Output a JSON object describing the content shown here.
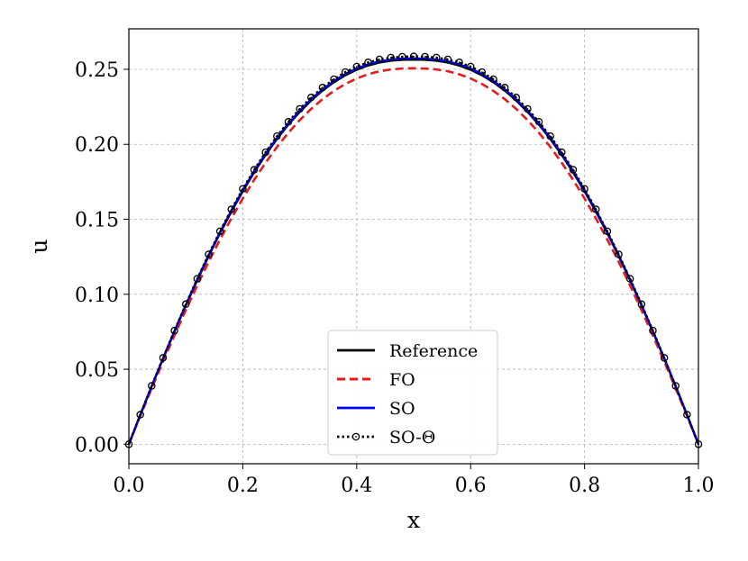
{
  "chart_data": {
    "type": "line",
    "title": "",
    "xlabel": "x",
    "ylabel": "u",
    "xlim": [
      0.0,
      1.0
    ],
    "ylim": [
      -0.013,
      0.277
    ],
    "xticks": [
      "0.0",
      "0.2",
      "0.4",
      "0.6",
      "0.8",
      "1.0"
    ],
    "yticks": [
      "0.00",
      "0.05",
      "0.10",
      "0.15",
      "0.20",
      "0.25"
    ],
    "grid": true,
    "legend_position": "lower-center",
    "series": [
      {
        "name": "Reference",
        "style": "solid",
        "color": "#000000",
        "marker": "none",
        "x": [
          0.0,
          0.02,
          0.04,
          0.06,
          0.08,
          0.1,
          0.12,
          0.14,
          0.16,
          0.18,
          0.2,
          0.22,
          0.24,
          0.26,
          0.28,
          0.3,
          0.32,
          0.34,
          0.36,
          0.38,
          0.4,
          0.42,
          0.44,
          0.46,
          0.48,
          0.5,
          0.52,
          0.54,
          0.56,
          0.58,
          0.6,
          0.62,
          0.64,
          0.66,
          0.68,
          0.7,
          0.72,
          0.74,
          0.76,
          0.78,
          0.8,
          0.82,
          0.84,
          0.86,
          0.88,
          0.9,
          0.92,
          0.94,
          0.96,
          0.98,
          1.0
        ],
        "y": [
          0.0,
          0.0195,
          0.0385,
          0.057,
          0.075,
          0.0925,
          0.1093,
          0.1254,
          0.1407,
          0.1551,
          0.1687,
          0.1813,
          0.1929,
          0.2035,
          0.2131,
          0.2216,
          0.2292,
          0.2358,
          0.2414,
          0.246,
          0.2497,
          0.2525,
          0.2545,
          0.2557,
          0.2563,
          0.2565,
          0.2563,
          0.2557,
          0.2545,
          0.2525,
          0.2497,
          0.246,
          0.2414,
          0.2358,
          0.2292,
          0.2216,
          0.2131,
          0.2035,
          0.1929,
          0.1813,
          0.1687,
          0.1551,
          0.1407,
          0.1254,
          0.1093,
          0.0925,
          0.075,
          0.057,
          0.0385,
          0.0195,
          0.0
        ]
      },
      {
        "name": "FO",
        "style": "dashed",
        "color": "#e41a1c",
        "marker": "none",
        "x": [
          0.0,
          0.02,
          0.04,
          0.06,
          0.08,
          0.1,
          0.12,
          0.14,
          0.16,
          0.18,
          0.2,
          0.22,
          0.24,
          0.26,
          0.28,
          0.3,
          0.32,
          0.34,
          0.36,
          0.38,
          0.4,
          0.42,
          0.44,
          0.46,
          0.48,
          0.5,
          0.52,
          0.54,
          0.56,
          0.58,
          0.6,
          0.62,
          0.64,
          0.66,
          0.68,
          0.7,
          0.72,
          0.74,
          0.76,
          0.78,
          0.8,
          0.82,
          0.84,
          0.86,
          0.88,
          0.9,
          0.92,
          0.94,
          0.96,
          0.98,
          1.0
        ],
        "y": [
          0.0,
          0.0188,
          0.0372,
          0.0551,
          0.0725,
          0.0895,
          0.1059,
          0.1216,
          0.1365,
          0.1506,
          0.1639,
          0.1763,
          0.1877,
          0.1982,
          0.2077,
          0.2161,
          0.2236,
          0.2301,
          0.2356,
          0.2402,
          0.2439,
          0.2467,
          0.2487,
          0.2499,
          0.2505,
          0.2507,
          0.2505,
          0.2499,
          0.2487,
          0.2467,
          0.2439,
          0.2402,
          0.2356,
          0.2301,
          0.2236,
          0.2161,
          0.2077,
          0.1982,
          0.1877,
          0.1763,
          0.1639,
          0.1506,
          0.1365,
          0.1216,
          0.1059,
          0.0895,
          0.0725,
          0.0551,
          0.0372,
          0.0188,
          0.0
        ]
      },
      {
        "name": "SO",
        "style": "solid",
        "color": "#0000ee",
        "marker": "none",
        "x": [
          0.0,
          0.02,
          0.04,
          0.06,
          0.08,
          0.1,
          0.12,
          0.14,
          0.16,
          0.18,
          0.2,
          0.22,
          0.24,
          0.26,
          0.28,
          0.3,
          0.32,
          0.34,
          0.36,
          0.38,
          0.4,
          0.42,
          0.44,
          0.46,
          0.48,
          0.5,
          0.52,
          0.54,
          0.56,
          0.58,
          0.6,
          0.62,
          0.64,
          0.66,
          0.68,
          0.7,
          0.72,
          0.74,
          0.76,
          0.78,
          0.8,
          0.82,
          0.84,
          0.86,
          0.88,
          0.9,
          0.92,
          0.94,
          0.96,
          0.98,
          1.0
        ],
        "y": [
          0.0,
          0.0196,
          0.0387,
          0.0573,
          0.0754,
          0.0929,
          0.1098,
          0.126,
          0.1413,
          0.1558,
          0.1694,
          0.1821,
          0.1937,
          0.2043,
          0.2139,
          0.2224,
          0.23,
          0.2366,
          0.2422,
          0.2468,
          0.2505,
          0.2533,
          0.2553,
          0.2565,
          0.2571,
          0.2573,
          0.2571,
          0.2565,
          0.2553,
          0.2533,
          0.2505,
          0.2468,
          0.2422,
          0.2366,
          0.23,
          0.2224,
          0.2139,
          0.2043,
          0.1937,
          0.1821,
          0.1694,
          0.1558,
          0.1413,
          0.126,
          0.1098,
          0.0929,
          0.0754,
          0.0573,
          0.0387,
          0.0196,
          0.0
        ]
      },
      {
        "name": "SO-Θ",
        "style": "dotted",
        "color": "#000000",
        "marker": "circle-dot",
        "x": [
          0.0,
          0.02,
          0.04,
          0.06,
          0.08,
          0.1,
          0.12,
          0.14,
          0.16,
          0.18,
          0.2,
          0.22,
          0.24,
          0.26,
          0.28,
          0.3,
          0.32,
          0.34,
          0.36,
          0.38,
          0.4,
          0.42,
          0.44,
          0.46,
          0.48,
          0.5,
          0.52,
          0.54,
          0.56,
          0.58,
          0.6,
          0.62,
          0.64,
          0.66,
          0.68,
          0.7,
          0.72,
          0.74,
          0.76,
          0.78,
          0.8,
          0.82,
          0.84,
          0.86,
          0.88,
          0.9,
          0.92,
          0.94,
          0.96,
          0.98,
          1.0
        ],
        "y": [
          0.0,
          0.0197,
          0.0389,
          0.0576,
          0.0758,
          0.0934,
          0.1103,
          0.1266,
          0.142,
          0.1566,
          0.1703,
          0.183,
          0.1947,
          0.2054,
          0.215,
          0.2236,
          0.2312,
          0.2378,
          0.2434,
          0.2481,
          0.2518,
          0.2546,
          0.2566,
          0.2578,
          0.2584,
          0.2586,
          0.2584,
          0.2578,
          0.2566,
          0.2546,
          0.2518,
          0.2481,
          0.2434,
          0.2378,
          0.2312,
          0.2236,
          0.215,
          0.2054,
          0.1947,
          0.183,
          0.1703,
          0.1566,
          0.142,
          0.1266,
          0.1103,
          0.0934,
          0.0758,
          0.0576,
          0.0389,
          0.0197,
          0.0
        ]
      }
    ]
  }
}
